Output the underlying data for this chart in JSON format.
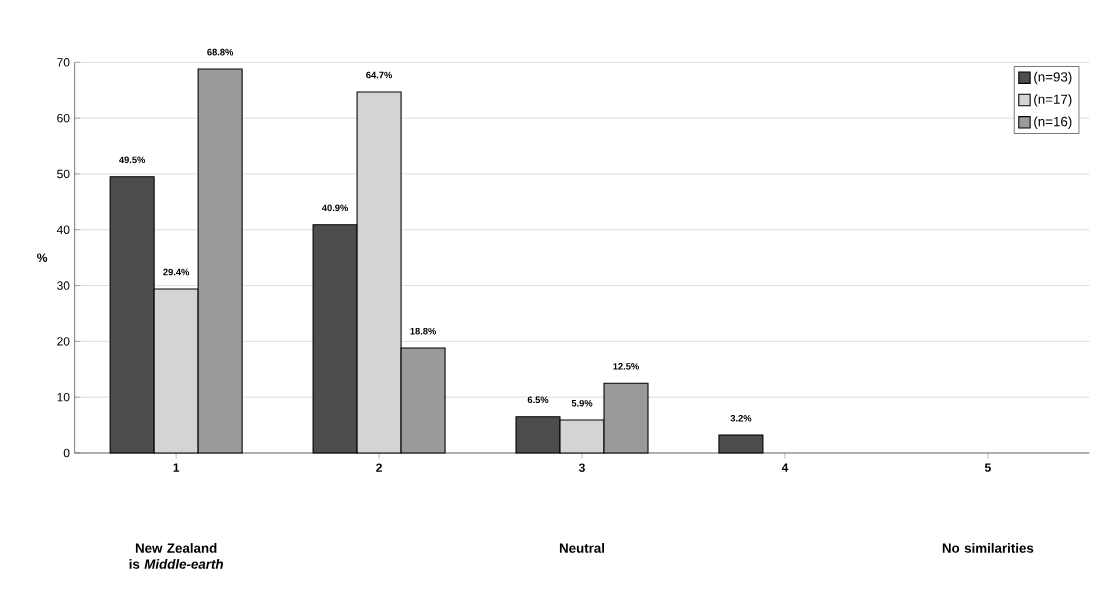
{
  "chart_data": {
    "type": "bar",
    "ylabel": "%",
    "categories": [
      "1",
      "2",
      "3",
      "4",
      "5"
    ],
    "series": [
      {
        "name": "(n=93)",
        "color": "#4d4d4d",
        "values": [
          49.5,
          40.9,
          6.5,
          3.2,
          null
        ],
        "value_labels": [
          "49.5%",
          "40.9%",
          "6.5%",
          "3.2%",
          null
        ]
      },
      {
        "name": "(n=17)",
        "color": "#d4d4d4",
        "values": [
          29.4,
          64.7,
          5.9,
          null,
          null
        ],
        "value_labels": [
          "29.4%",
          "64.7%",
          "5.9%",
          null,
          null
        ]
      },
      {
        "name": "(n=16)",
        "color": "#9a9a9a",
        "values": [
          68.8,
          18.8,
          12.5,
          null,
          null
        ],
        "value_labels": [
          "68.8%",
          "18.8%",
          "12.5%",
          null,
          null
        ]
      }
    ],
    "ylim": [
      0,
      70
    ],
    "yticks": [
      0,
      10,
      20,
      30,
      40,
      50,
      60,
      70
    ],
    "grid": "y",
    "legend": "top right",
    "annotations": [
      "New Zealand is *Middle-earth*",
      "Neutral",
      "No similarities"
    ]
  }
}
